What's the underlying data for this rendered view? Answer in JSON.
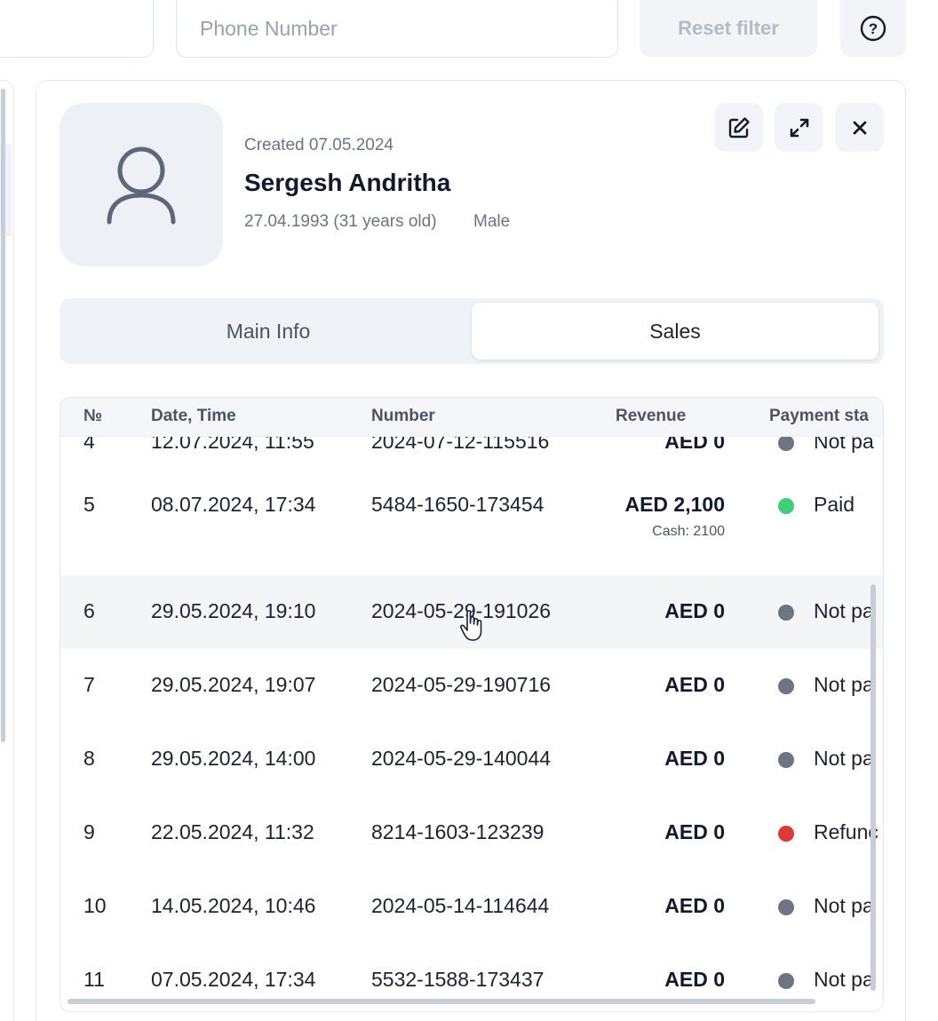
{
  "filters": {
    "phone_placeholder": "Phone Number",
    "reset_label": "Reset filter",
    "help_glyph": "?"
  },
  "customer": {
    "created": "Created 07.05.2024",
    "name": "Sergesh Andritha",
    "birth": "27.04.1993 (31 years old)",
    "gender": "Male"
  },
  "tabs": [
    {
      "label": "Main Info",
      "active": false
    },
    {
      "label": "Sales",
      "active": true
    }
  ],
  "sales_table": {
    "columns": {
      "num": "№",
      "date": "Date, Time",
      "number": "Number",
      "revenue": "Revenue",
      "status": "Payment sta"
    },
    "rows": [
      {
        "num": "4",
        "date": "12.07.2024, 11:55",
        "number": "2024-07-12-115516",
        "revenue": "AED 0",
        "sub": "",
        "status": "Not pa",
        "status_color": "#6e7482"
      },
      {
        "num": "5",
        "date": "08.07.2024, 17:34",
        "number": "5484-1650-173454",
        "revenue": "AED 2,100",
        "sub": "Cash: 2100",
        "status": "Paid",
        "status_color": "#3fcf7a"
      },
      {
        "num": "6",
        "date": "29.05.2024, 19:10",
        "number": "2024-05-29-191026",
        "revenue": "AED 0",
        "sub": "",
        "status": "Not pa",
        "status_color": "#6e7482"
      },
      {
        "num": "7",
        "date": "29.05.2024, 19:07",
        "number": "2024-05-29-190716",
        "revenue": "AED 0",
        "sub": "",
        "status": "Not pa",
        "status_color": "#6e7482"
      },
      {
        "num": "8",
        "date": "29.05.2024, 14:00",
        "number": "2024-05-29-140044",
        "revenue": "AED 0",
        "sub": "",
        "status": "Not pa",
        "status_color": "#6e7482"
      },
      {
        "num": "9",
        "date": "22.05.2024, 11:32",
        "number": "8214-1603-123239",
        "revenue": "AED 0",
        "sub": "",
        "status": "Refunc",
        "status_color": "#dc3a34"
      },
      {
        "num": "10",
        "date": "14.05.2024, 10:46",
        "number": "2024-05-14-114644",
        "revenue": "AED 0",
        "sub": "",
        "status": "Not pa",
        "status_color": "#6e7482"
      },
      {
        "num": "11",
        "date": "07.05.2024, 17:34",
        "number": "5532-1588-173437",
        "revenue": "AED 0",
        "sub": "",
        "status": "Not pa",
        "status_color": "#6e7482"
      }
    ]
  }
}
